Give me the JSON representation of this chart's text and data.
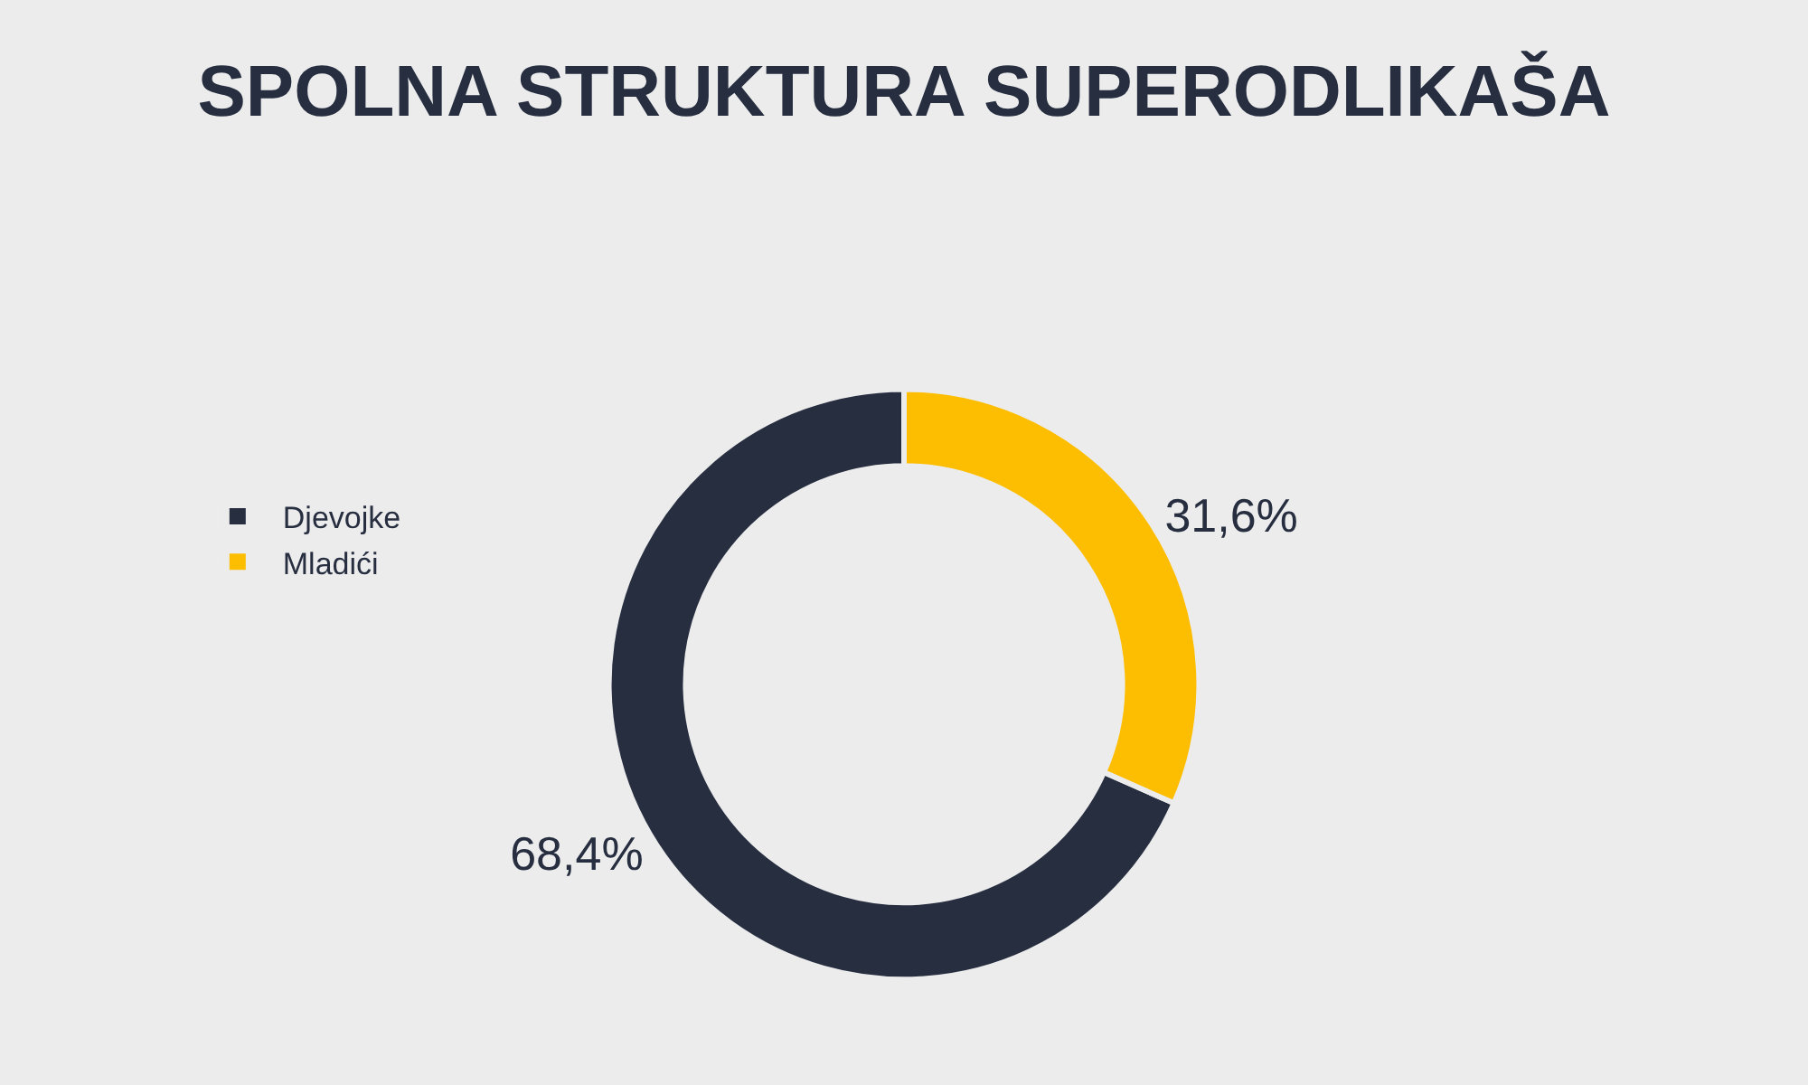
{
  "chart_data": {
    "type": "donut",
    "title": "SPOLNA STRUKTURA SUPERODLIKAŠA",
    "categories": [
      "Djevojke",
      "Mladići"
    ],
    "values": [
      68.4,
      31.6
    ],
    "colors": [
      "#262e40",
      "#fdbd00"
    ],
    "value_labels": [
      "68,4%",
      "31,6%"
    ],
    "legend": "left"
  }
}
